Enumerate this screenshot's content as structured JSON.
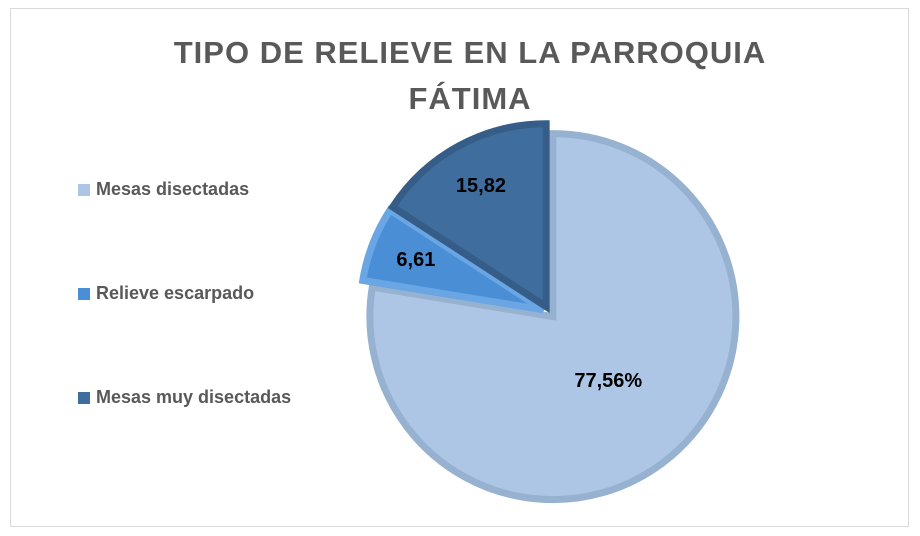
{
  "chart_data": {
    "type": "pie",
    "title": "TIPO DE RELIEVE EN LA PARROQUIA FÁTIMA",
    "categories": [
      "Mesas disectadas",
      "Relieve escarpado",
      "Mesas muy disectadas"
    ],
    "values": [
      77.56,
      6.61,
      15.82
    ],
    "value_labels": [
      "77,56%",
      "6,61",
      "15,82"
    ],
    "colors": [
      "#adc6e5",
      "#4a8fd6",
      "#3f6e9e"
    ],
    "legend": "left"
  }
}
